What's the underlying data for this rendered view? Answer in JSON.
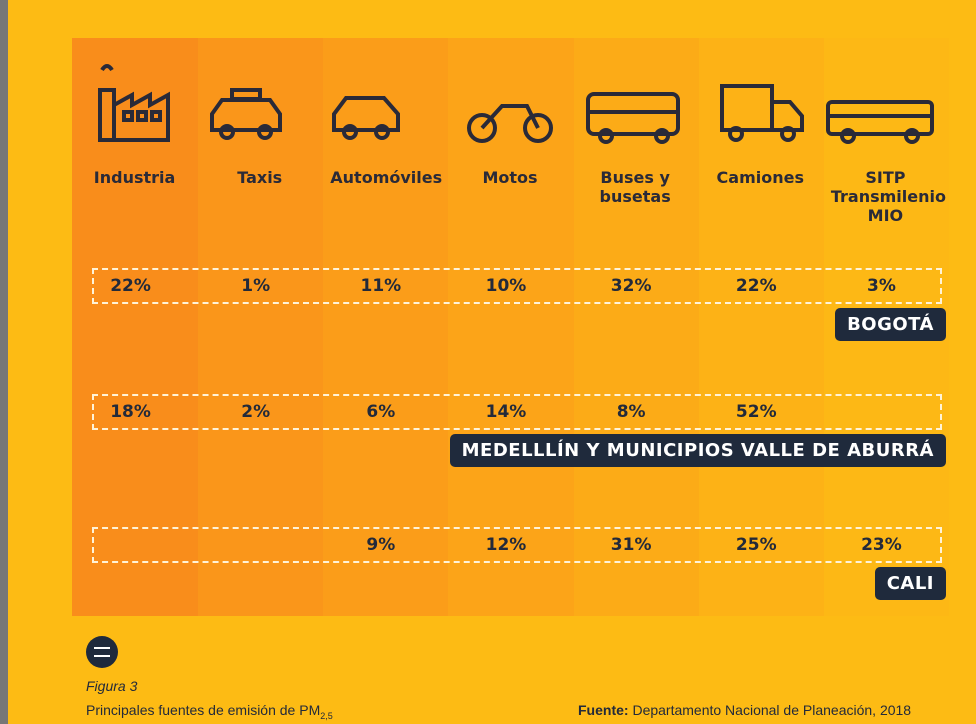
{
  "columns": [
    "Industria",
    "Taxis",
    "Automóviles",
    "Motos",
    "Buses y busetas",
    "Camiones",
    "SITP Transmilenio MIO"
  ],
  "rows": [
    {
      "city": "BOGOTÁ",
      "values": [
        "22%",
        "1%",
        "11%",
        "10%",
        "32%",
        "22%",
        "3%"
      ]
    },
    {
      "city": "MEDELLLÍN Y MUNICIPIOS VALLE DE ABURRÁ",
      "values": [
        "18%",
        "2%",
        "6%",
        "14%",
        "8%",
        "52%",
        null
      ]
    },
    {
      "city": "CALI",
      "values": [
        null,
        null,
        "9%",
        "12%",
        "31%",
        "25%",
        "23%"
      ]
    }
  ],
  "footer": {
    "figure": "Figura 3",
    "caption": "Principales fuentes de emisión de PM",
    "caption_sub": "2,5",
    "source_label": "Fuente:",
    "source": "Departamento Nacional de Planeación, 2018"
  }
}
